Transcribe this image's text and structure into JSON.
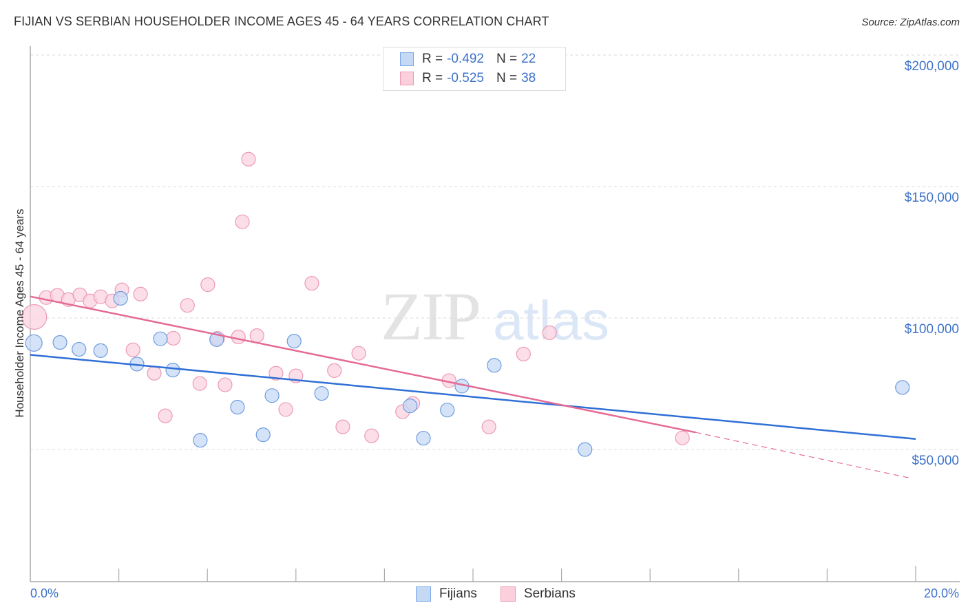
{
  "header": {
    "title": "FIJIAN VS SERBIAN HOUSEHOLDER INCOME AGES 45 - 64 YEARS CORRELATION CHART",
    "source": "Source: ZipAtlas.com"
  },
  "watermark": {
    "zip": "ZIP",
    "atlas": "atlas"
  },
  "legend": {
    "rows": [
      {
        "r_label": "R = ",
        "r_value": "-0.492",
        "n_label": "N = ",
        "n_value": "22",
        "fill": "#c5d9f5",
        "stroke": "#7aa6e6"
      },
      {
        "r_label": "R = ",
        "r_value": "-0.525",
        "n_label": "N = ",
        "n_value": "38",
        "fill": "#fbcfdc",
        "stroke": "#ec9ab4"
      }
    ]
  },
  "bottom_legend": [
    {
      "label": "Fijians",
      "fill": "#c5d9f5",
      "stroke": "#7aa6e6"
    },
    {
      "label": "Serbians",
      "fill": "#fbcfdc",
      "stroke": "#ec9ab4"
    }
  ],
  "axes": {
    "ylabel": "Householder Income Ages 45 - 64 years",
    "yticks": [
      "$200,000",
      "$150,000",
      "$100,000",
      "$50,000"
    ],
    "xtick_left": "0.0%",
    "xtick_right": "20.0%"
  },
  "colors": {
    "fijians_fill": "#c5d9f5",
    "fijians_stroke": "#6d9be0",
    "fijians_line": "#2f6fd6",
    "serbians_fill": "#fbd3e0",
    "serbians_stroke": "#ec9ab4",
    "serbians_line": "#e56a94",
    "grid": "#d9d9d9",
    "axis": "#aaaaaa",
    "tick_text": "#3d72c9"
  },
  "chart_data": {
    "type": "scatter",
    "title": "FIJIAN VS SERBIAN HOUSEHOLDER INCOME AGES 45 - 64 YEARS CORRELATION CHART",
    "xlabel": "",
    "ylabel": "Householder Income Ages 45 - 64 years",
    "xlim": [
      0,
      20
    ],
    "ylim": [
      0,
      205000
    ],
    "x_unit": "%",
    "grid": true,
    "legend_position": "top-center",
    "series": [
      {
        "name": "Fijians",
        "R": -0.492,
        "N": 22,
        "trend": {
          "x": [
            0,
            20
          ],
          "y": [
            86000,
            54000
          ]
        },
        "points": [
          [
            0.08,
            90500,
            12
          ],
          [
            0.67,
            90700
          ],
          [
            1.1,
            88100
          ],
          [
            1.59,
            87600
          ],
          [
            2.04,
            107500
          ],
          [
            2.41,
            82500
          ],
          [
            2.94,
            92100
          ],
          [
            3.22,
            80200
          ],
          [
            3.84,
            53500
          ],
          [
            4.21,
            91800
          ],
          [
            4.68,
            66100
          ],
          [
            5.26,
            55600
          ],
          [
            5.46,
            70500
          ],
          [
            5.96,
            91200
          ],
          [
            6.58,
            71300
          ],
          [
            8.58,
            66600
          ],
          [
            8.88,
            54300
          ],
          [
            9.42,
            65000
          ],
          [
            9.75,
            74100
          ],
          [
            10.48,
            82000
          ],
          [
            12.53,
            50000
          ],
          [
            19.7,
            73600
          ]
        ]
      },
      {
        "name": "Serbians",
        "R": -0.525,
        "N": 38,
        "trend": {
          "x": [
            0,
            15.03
          ],
          "y": [
            108200,
            56500
          ],
          "dashed_to": [
            19.91,
            39000
          ]
        },
        "points": [
          [
            0.09,
            100400,
            18
          ],
          [
            0.36,
            107800
          ],
          [
            0.61,
            108600
          ],
          [
            0.86,
            107000
          ],
          [
            1.12,
            108800
          ],
          [
            1.35,
            106500
          ],
          [
            1.59,
            108100
          ],
          [
            1.85,
            106500
          ],
          [
            2.07,
            110700
          ],
          [
            2.49,
            109100
          ],
          [
            2.32,
            87900
          ],
          [
            2.8,
            79000
          ],
          [
            3.05,
            62800
          ],
          [
            3.23,
            92300
          ],
          [
            3.55,
            104800
          ],
          [
            3.83,
            75100
          ],
          [
            4.01,
            112700
          ],
          [
            4.23,
            92300
          ],
          [
            4.4,
            74600
          ],
          [
            4.7,
            92800
          ],
          [
            4.79,
            136600
          ],
          [
            4.93,
            160400
          ],
          [
            5.12,
            93300
          ],
          [
            5.55,
            79000
          ],
          [
            5.77,
            65200
          ],
          [
            6.0,
            78000
          ],
          [
            6.36,
            113200
          ],
          [
            6.87,
            80000
          ],
          [
            7.06,
            58600
          ],
          [
            7.42,
            86600
          ],
          [
            7.71,
            55200
          ],
          [
            8.41,
            64400
          ],
          [
            8.64,
            67500
          ],
          [
            9.46,
            76200
          ],
          [
            10.36,
            58600
          ],
          [
            11.14,
            86300
          ],
          [
            11.73,
            94400
          ],
          [
            14.73,
            54400
          ]
        ]
      }
    ]
  }
}
